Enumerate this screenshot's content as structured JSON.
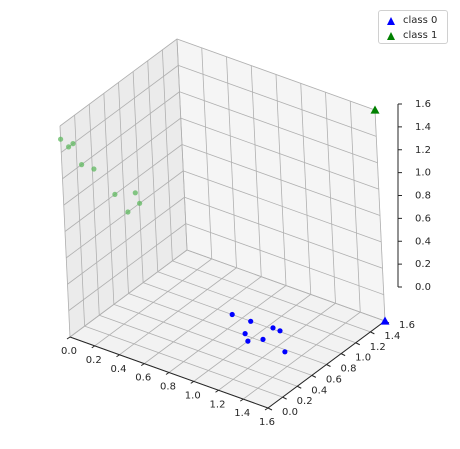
{
  "chart_data": {
    "type": "scatter",
    "projection": "3d",
    "grid": true,
    "legend_placement": "top-right",
    "xlim": [
      0.0,
      1.6
    ],
    "ylim": [
      0.0,
      1.6
    ],
    "zlim": [
      0.0,
      1.6
    ],
    "x_ticks": [
      "0.0",
      "0.2",
      "0.4",
      "0.6",
      "0.8",
      "1.0",
      "1.2",
      "1.4",
      "1.6"
    ],
    "y_ticks": [
      "0.0",
      "0.2",
      "0.4",
      "0.6",
      "0.8",
      "1.0",
      "1.2",
      "1.4",
      "1.6"
    ],
    "z_ticks": [
      "0.0",
      "0.2",
      "0.4",
      "0.6",
      "0.8",
      "1.0",
      "1.2",
      "1.4",
      "1.6"
    ],
    "legend": [
      {
        "label": "class 0",
        "color": "#0000ff",
        "marker": "triangle"
      },
      {
        "label": "class 1",
        "color": "#008000",
        "marker": "triangle"
      }
    ],
    "series": [
      {
        "name": "class 0",
        "color": "#0000ff",
        "marker": "triangle",
        "points": [
          {
            "x": 1.6,
            "y": 1.6,
            "z": 0.0
          }
        ]
      },
      {
        "name": "class 1",
        "color": "#008000",
        "marker": "triangle",
        "points": [
          {
            "x": 1.6,
            "y": 1.6,
            "z": 1.6
          }
        ]
      },
      {
        "name": "",
        "color": "#0000ff",
        "marker": "circle",
        "points": [
          {
            "x": 1.0,
            "y": 0.55,
            "z": 0.28
          },
          {
            "x": 1.08,
            "y": 0.58,
            "z": 0.15
          },
          {
            "x": 1.05,
            "y": 0.71,
            "z": 0.18
          },
          {
            "x": 1.15,
            "y": 0.7,
            "z": 0.08
          },
          {
            "x": 1.1,
            "y": 0.92,
            "z": 0.06
          },
          {
            "x": 1.2,
            "y": 0.85,
            "z": 0.1
          },
          {
            "x": 1.0,
            "y": 0.74,
            "z": 0.0
          },
          {
            "x": 1.3,
            "y": 0.74,
            "z": 0.02
          }
        ]
      },
      {
        "name": "",
        "color": "#5fb85f",
        "marker": "circle",
        "points": [
          {
            "x": 0.0,
            "y": 0.0,
            "z": 1.5
          },
          {
            "x": 0.1,
            "y": 0.0,
            "z": 1.5
          },
          {
            "x": 0.0,
            "y": 0.1,
            "z": 1.4
          },
          {
            "x": 0.1,
            "y": 0.1,
            "z": 1.3
          },
          {
            "x": 0.2,
            "y": 0.1,
            "z": 1.3
          },
          {
            "x": 0.4,
            "y": 0.2,
            "z": 1.0
          },
          {
            "x": 0.3,
            "y": 0.2,
            "z": 1.1
          },
          {
            "x": 0.5,
            "y": 0.2,
            "z": 1.1
          },
          {
            "x": 0.5,
            "y": 0.15,
            "z": 1.2
          }
        ]
      }
    ]
  }
}
